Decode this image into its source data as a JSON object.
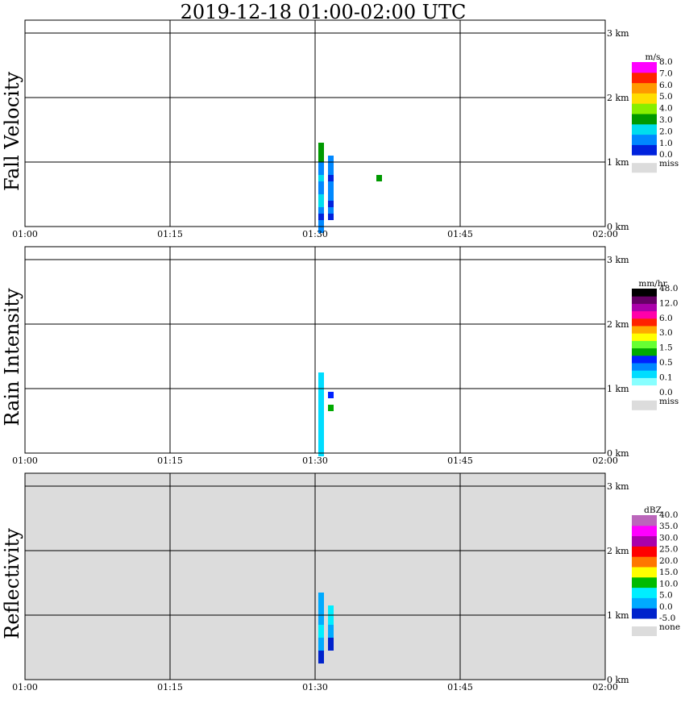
{
  "title": "2019-12-18   01:00-02:00 UTC",
  "x_ticks": [
    "01:00",
    "01:15",
    "01:30",
    "01:45",
    "02:00"
  ],
  "y_ticks": [
    "0 km",
    "1 km",
    "2 km",
    "3 km"
  ],
  "panels": [
    {
      "ylabel": "Fall Velocity",
      "background": "#ffffff",
      "colorbar": {
        "unit": "m/s",
        "colors": [
          "#0022dd",
          "#0088ff",
          "#00ddee",
          "#009900",
          "#88ee00",
          "#ffdd00",
          "#ff9900",
          "#ff2200",
          "#ff00ff"
        ],
        "labels": [
          "0.0",
          "1.0",
          "2.0",
          "3.0",
          "4.0",
          "5.0",
          "6.0",
          "7.0",
          "8.0"
        ],
        "miss_label": "miss"
      }
    },
    {
      "ylabel": "Rain Intensity",
      "background": "#ffffff",
      "colorbar": {
        "unit": "mm/hr",
        "colors": [
          "#ffffff",
          "#88ffff",
          "#00ddff",
          "#0088ff",
          "#0022ff",
          "#00aa00",
          "#66ff33",
          "#ffff00",
          "#ffaa00",
          "#ff2200",
          "#ff00aa",
          "#aa00aa",
          "#660066",
          "#000000"
        ],
        "labels": [
          "0.0",
          "0.1",
          "0.5",
          "1.5",
          "3.0",
          "6.0",
          "12.0",
          "48.0"
        ],
        "miss_label": "miss"
      }
    },
    {
      "ylabel": "Reflectivity",
      "background": "#dcdcdc",
      "colorbar": {
        "unit": "dBZ",
        "colors": [
          "#0022cc",
          "#00aaff",
          "#00eeff",
          "#00bb00",
          "#ffff00",
          "#ff7700",
          "#ff0000",
          "#aa00aa",
          "#ff00ff",
          "#bb66bb"
        ],
        "labels": [
          "-5.0",
          "0.0",
          "5.0",
          "10.0",
          "15.0",
          "20.0",
          "25.0",
          "30.0",
          "35.0",
          "40.0"
        ],
        "miss_label": "none"
      }
    }
  ],
  "chart_data": {
    "type": "heatmap",
    "title": "2019-12-18   01:00-02:00 UTC",
    "x_range": [
      "01:00",
      "02:00"
    ],
    "y_range_km": [
      0,
      3.2
    ],
    "grid": true,
    "panels": [
      {
        "name": "Fall Velocity",
        "unit": "m/s",
        "cells": [
          [
            "01:30",
            0.05,
            1.0,
            0.3
          ],
          [
            "01:30",
            0.15,
            1.5,
            0.3
          ],
          [
            "01:30",
            0.25,
            0.5,
            0.3
          ],
          [
            "01:30",
            0.35,
            1.5,
            0.3
          ],
          [
            "01:30",
            0.45,
            2.5,
            0.3
          ],
          [
            "01:30",
            0.55,
            2.5,
            0.3
          ],
          [
            "01:30",
            0.65,
            1.5,
            0.3
          ],
          [
            "01:30",
            0.75,
            1.5,
            0.3
          ],
          [
            "01:30",
            0.85,
            2.5,
            0.3
          ],
          [
            "01:30",
            0.95,
            1.5,
            0.3
          ],
          [
            "01:30",
            1.05,
            1.5,
            0.3
          ],
          [
            "01:30",
            1.15,
            3.5,
            0.3
          ],
          [
            "01:31",
            0.25,
            0.5,
            0.3
          ],
          [
            "01:31",
            0.35,
            1.5,
            0.3
          ],
          [
            "01:31",
            0.45,
            0.5,
            0.3
          ],
          [
            "01:31",
            0.55,
            1.5,
            0.3
          ],
          [
            "01:31",
            0.85,
            0.5,
            0.3
          ],
          [
            "01:31",
            0.95,
            1.5,
            0.3
          ],
          [
            "01:36",
            0.75,
            3.5,
            0.1
          ]
        ]
      },
      {
        "name": "Rain Intensity",
        "unit": "mm/hr",
        "cells": [
          [
            "01:30",
            0.1,
            0.1,
            0.3
          ],
          [
            "01:30",
            0.3,
            0.1,
            0.3
          ],
          [
            "01:30",
            0.5,
            0.1,
            0.3
          ],
          [
            "01:30",
            0.7,
            0.1,
            0.3
          ],
          [
            "01:30",
            0.9,
            0.1,
            0.3
          ],
          [
            "01:30",
            1.1,
            0.1,
            0.3
          ],
          [
            "01:31",
            0.7,
            1.0,
            0.1
          ],
          [
            "01:31",
            0.9,
            0.5,
            0.1
          ]
        ]
      },
      {
        "name": "Reflectivity",
        "unit": "dBZ",
        "cells": [
          [
            "01:30",
            0.4,
            -5.0,
            0.3
          ],
          [
            "01:30",
            0.6,
            0.0,
            0.3
          ],
          [
            "01:30",
            0.8,
            5.0,
            0.3
          ],
          [
            "01:30",
            1.0,
            0.0,
            0.3
          ],
          [
            "01:30",
            1.2,
            0.0,
            0.3
          ],
          [
            "01:31",
            0.6,
            -5.0,
            0.3
          ],
          [
            "01:31",
            0.8,
            0.0,
            0.3
          ],
          [
            "01:31",
            0.9,
            10.0,
            0.1
          ],
          [
            "01:31",
            1.0,
            5.0,
            0.3
          ]
        ]
      }
    ]
  }
}
